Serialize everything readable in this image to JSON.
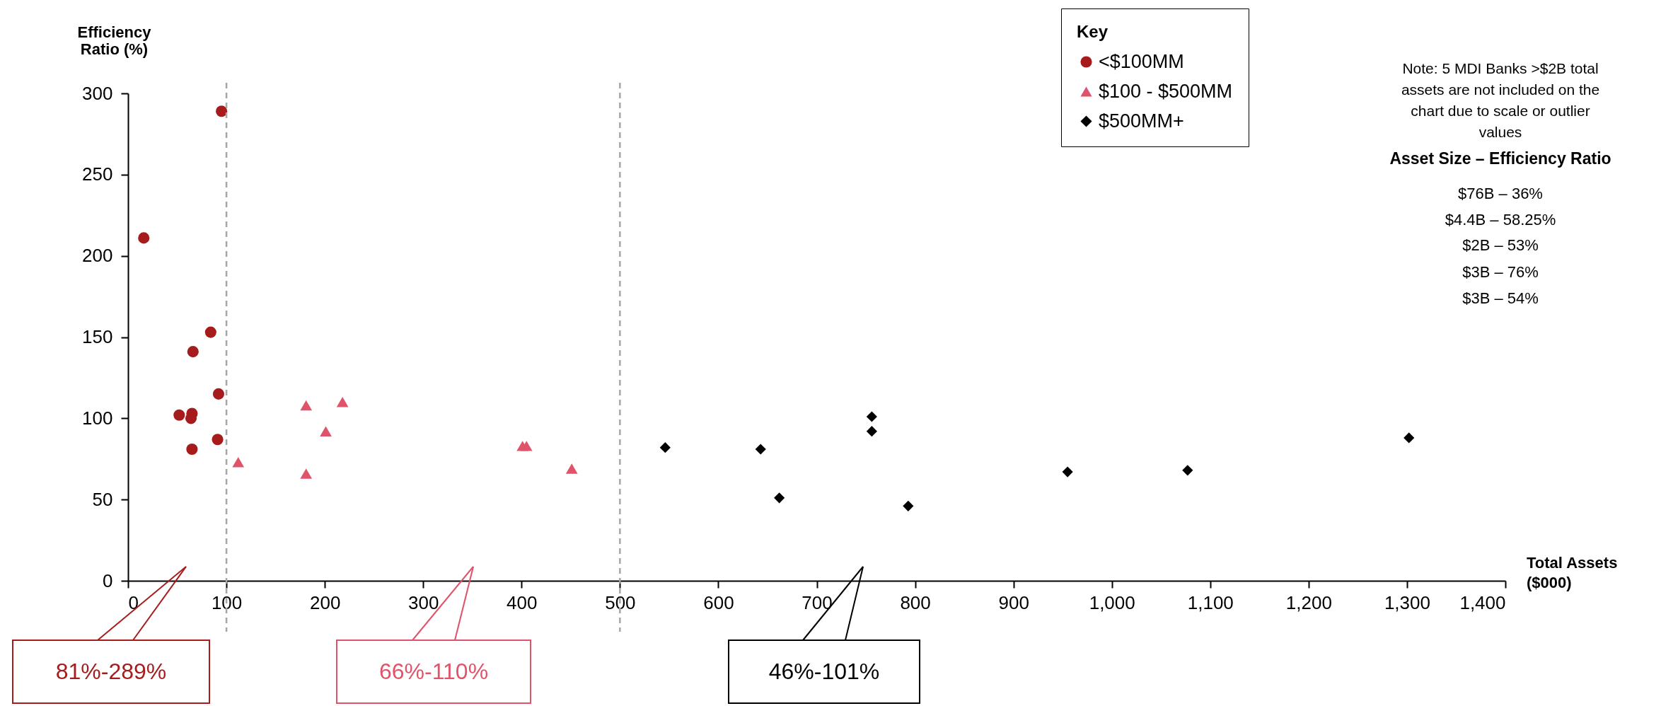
{
  "chart_data": {
    "type": "scatter",
    "xlabel": "Total Assets ($000)",
    "ylabel": "Efficiency Ratio (%)",
    "legend_title": "Key",
    "xlim": [
      0,
      1400
    ],
    "xticks": [
      0,
      100,
      200,
      300,
      400,
      500,
      600,
      700,
      800,
      900,
      {
        "value": 1000,
        "label": "1,000"
      },
      {
        "value": 1100,
        "label": "1,100"
      },
      {
        "value": 1200,
        "label": "1,200"
      },
      {
        "value": 1300,
        "label": "1,300"
      },
      {
        "value": 1400,
        "label": "1,400"
      }
    ],
    "ylim": [
      0,
      300
    ],
    "yticks": [
      0,
      50,
      100,
      150,
      200,
      250,
      300
    ],
    "grid": false,
    "legend": "top right",
    "series": [
      {
        "name": "<$100MM",
        "color": "#a61c1c",
        "marker": "circle",
        "x": [
          95,
          16,
          84,
          66,
          92,
          52,
          65,
          64,
          91,
          65
        ],
        "values": [
          289,
          211,
          153,
          141,
          115,
          102,
          103,
          100,
          87,
          81
        ]
      },
      {
        "name": "$100 - $500MM",
        "color": "#e0546b",
        "marker": "triangle",
        "x": [
          112,
          181,
          218,
          201,
          181,
          401,
          405,
          451
        ],
        "values": [
          73,
          108,
          110,
          92,
          66,
          83,
          83,
          69
        ]
      },
      {
        "name": "$500MM+",
        "color": "#000000",
        "marker": "diamond",
        "x": [
          546,
          643,
          662,
          756,
          756,
          793,
          955,
          1077,
          1302
        ],
        "values": [
          82,
          81,
          51,
          101,
          92,
          46,
          67,
          68,
          88
        ]
      }
    ],
    "ref_lines": [
      {
        "axis": "x",
        "value": 100,
        "color": "#a6a6a6",
        "line_style": "dashed"
      },
      {
        "axis": "x",
        "value": 500,
        "color": "#a6a6a6",
        "line_style": "dashed"
      }
    ],
    "annotations": [
      "81%-289%",
      "66%-110%",
      "46%-101%",
      "Note: 5 MDI Banks >$2B total assets are not included on the chart due to scale or outlier values",
      "Asset Size – Efficiency Ratio",
      "$76B – 36%",
      "$4.4B – 58.25%",
      "$2B – 53%",
      "$3B – 76%",
      "$3B – 54%"
    ]
  }
}
